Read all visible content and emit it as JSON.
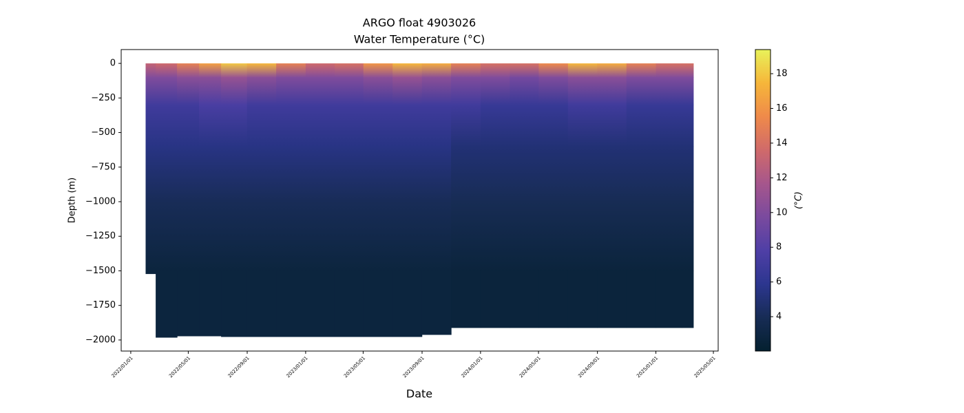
{
  "chart_data": {
    "type": "heatmap",
    "title": "ARGO float 4903026",
    "subtitle": "Water Temperature (°C)",
    "xlabel": "Date",
    "ylabel": "Depth (m)",
    "colorbar_label": "(°C)",
    "x": [
      "2022/02/01",
      "2022/03/15",
      "2022/05/01",
      "2022/06/15",
      "2022/08/01",
      "2022/10/01",
      "2022/12/01",
      "2023/02/01",
      "2023/04/01",
      "2023/06/01",
      "2023/08/01",
      "2023/10/01",
      "2023/12/01",
      "2024/02/01",
      "2024/04/01",
      "2024/06/01",
      "2024/08/01",
      "2024/10/01",
      "2024/12/01",
      "2025/02/01",
      "2025/03/20"
    ],
    "depths": [
      0,
      -100,
      -300,
      -600,
      -1000,
      -1500
    ],
    "temperature": [
      [
        13,
        10,
        7,
        5.5,
        4,
        2.8
      ],
      [
        13.5,
        10,
        7,
        5.5,
        4,
        2.8
      ],
      [
        15,
        10.5,
        7,
        5.5,
        4,
        2.8
      ],
      [
        16.5,
        10.5,
        7.5,
        5.5,
        4,
        2.8
      ],
      [
        18,
        11,
        7.5,
        5.5,
        4,
        2.8
      ],
      [
        17.5,
        10.5,
        7,
        5.5,
        4,
        2.8
      ],
      [
        15,
        10,
        7,
        5.5,
        4,
        2.8
      ],
      [
        13.5,
        10,
        7,
        5.5,
        4,
        2.8
      ],
      [
        14,
        10,
        7,
        5.5,
        4,
        2.8
      ],
      [
        16,
        10.5,
        7,
        5.5,
        4,
        2.8
      ],
      [
        17.5,
        11,
        7,
        5.5,
        4,
        2.8
      ],
      [
        17,
        10.5,
        7,
        5.5,
        4,
        2.8
      ],
      [
        15,
        10,
        7,
        5,
        3.9,
        2.7
      ],
      [
        14,
        10,
        6.5,
        5,
        3.9,
        2.7
      ],
      [
        14,
        9.5,
        6.5,
        5,
        3.9,
        2.7
      ],
      [
        15.5,
        10,
        6.5,
        5,
        3.9,
        2.7
      ],
      [
        17.5,
        10.5,
        7,
        5,
        3.9,
        2.7
      ],
      [
        17,
        10.5,
        7,
        5,
        3.9,
        2.7
      ],
      [
        15,
        10,
        6.5,
        5,
        3.9,
        2.7
      ],
      [
        14,
        10,
        6.5,
        5,
        3.9,
        2.7
      ],
      [
        14,
        10,
        6.5,
        5,
        3.9,
        2.7
      ]
    ],
    "max_depth": [
      -1520,
      -1980,
      -1970,
      -1970,
      -1975,
      -1975,
      -1975,
      -1975,
      -1975,
      -1975,
      -1975,
      -1960,
      -1910,
      -1910,
      -1910,
      -1910,
      -1910,
      -1910,
      -1910,
      -1910,
      -1910
    ],
    "xlim": [
      "2021/12/12",
      "2025/05/11"
    ],
    "xticks": [
      "2022/01/01",
      "2022/05/01",
      "2022/09/01",
      "2023/01/01",
      "2023/05/01",
      "2023/09/01",
      "2024/01/01",
      "2024/05/01",
      "2024/09/01",
      "2025/01/01",
      "2025/05/01"
    ],
    "ylim": [
      100,
      -2080
    ],
    "yticks": [
      0,
      {
        "value": -250,
        "label": "−250"
      },
      {
        "value": -500,
        "label": "−500"
      },
      {
        "value": -750,
        "label": "−750"
      },
      {
        "value": -1000,
        "label": "−1000"
      },
      {
        "value": -1250,
        "label": "−1250"
      },
      {
        "value": -1500,
        "label": "−1500"
      },
      {
        "value": -1750,
        "label": "−1750"
      },
      {
        "value": -2000,
        "label": "−2000"
      }
    ],
    "clim": [
      2.02,
      19.39
    ],
    "cticks": [
      4,
      6,
      8,
      10,
      12,
      14,
      16,
      18
    ],
    "colormap": [
      "#04202f",
      "#172c55",
      "#2c368f",
      "#4f3fa6",
      "#7a4a9e",
      "#a6568c",
      "#d06a6a",
      "#ef8a4a",
      "#f6b63a",
      "#e8f25a"
    ]
  }
}
